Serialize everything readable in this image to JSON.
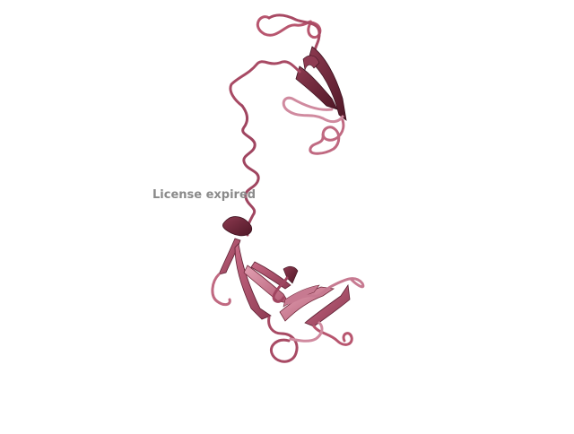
{
  "scene": {
    "subject": "protein-ribbon-cartoon",
    "background_color": "#ffffff",
    "colors": {
      "ribbon_dark": "#6e2638",
      "ribbon_mid": "#a84a64",
      "ribbon_light": "#d07a93",
      "coil": "#b8566f"
    }
  },
  "watermark": {
    "text": "License expired"
  }
}
